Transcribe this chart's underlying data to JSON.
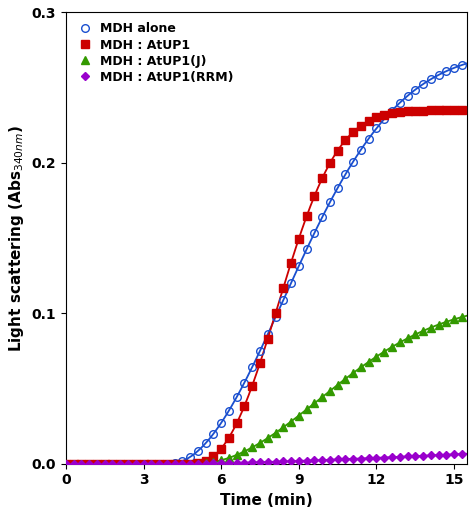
{
  "title": "",
  "xlabel": "Time (min)",
  "xlim": [
    0,
    15.5
  ],
  "ylim": [
    0,
    0.3
  ],
  "xticks": [
    0,
    3,
    6,
    9,
    12,
    15
  ],
  "yticks": [
    0.0,
    0.1,
    0.2,
    0.3
  ],
  "series": [
    {
      "label": "MDH alone",
      "color": "#1a4fcf",
      "marker": "o",
      "markerfacecolor": "none",
      "markersize": 5.5,
      "linewidth": 1.3,
      "lag": 4.0,
      "k": 0.026,
      "n": 2.0,
      "Vmax": 0.275
    },
    {
      "label": "MDH : AtUP1",
      "color": "#cc0000",
      "marker": "s",
      "markerfacecolor": "#cc0000",
      "markersize": 5.5,
      "linewidth": 1.3,
      "lag": 4.8,
      "k": 0.028,
      "n": 2.5,
      "Vmax": 0.235
    },
    {
      "label": "MDH : AtUP1(J)",
      "color": "#339900",
      "marker": "^",
      "markerfacecolor": "#339900",
      "markersize": 5.5,
      "linewidth": 1.3,
      "lag": 5.0,
      "k": 0.022,
      "n": 2.0,
      "Vmax": 0.108
    },
    {
      "label": "MDH : AtUP1(RRM)",
      "color": "#9900cc",
      "marker": "D",
      "markerfacecolor": "#9900cc",
      "markersize": 4.5,
      "linewidth": 1.3,
      "lag": 4.5,
      "k": 0.006,
      "n": 1.5,
      "Vmax": 0.034
    }
  ],
  "marker_interval": 0.3,
  "legend_loc": "upper left",
  "legend_fontsize": 9,
  "tick_fontsize": 10,
  "label_fontsize": 11,
  "figsize": [
    4.74,
    5.15
  ],
  "dpi": 100
}
